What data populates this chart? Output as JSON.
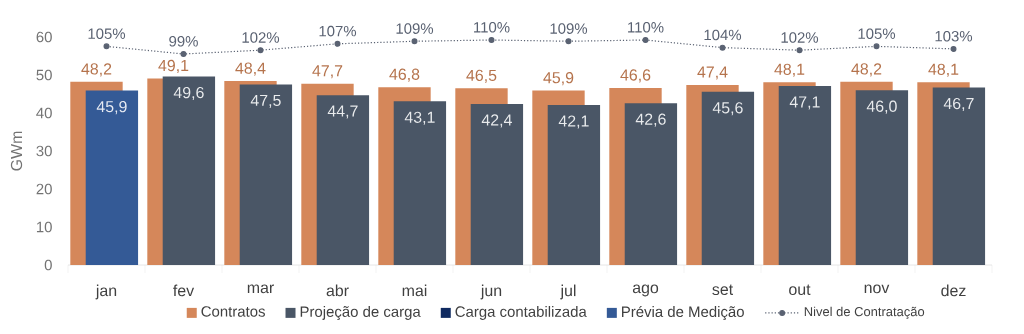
{
  "chart_data": {
    "type": "bar",
    "ylabel": "GWm",
    "categories": [
      "jan",
      "fev",
      "mar",
      "abr",
      "mai",
      "jun",
      "jul",
      "ago",
      "set",
      "out",
      "nov",
      "dez"
    ],
    "series": [
      {
        "name": "Contratos",
        "color": "#d5875a",
        "values": [
          48.2,
          49.1,
          48.4,
          47.7,
          46.8,
          46.5,
          45.9,
          46.6,
          47.4,
          48.1,
          48.2,
          48.1
        ],
        "value_labels": [
          "48,2",
          "49,1",
          "48,4",
          "47,7",
          "46,8",
          "46,5",
          "45,9",
          "46,6",
          "47,4",
          "48,1",
          "48,2",
          "48,1"
        ]
      },
      {
        "name": "Projeção de carga",
        "color": "#4a5666",
        "values": [
          null,
          49.6,
          47.5,
          44.7,
          43.1,
          42.4,
          42.1,
          42.6,
          45.6,
          47.1,
          46.0,
          46.7
        ],
        "value_labels": [
          null,
          "49,6",
          "47,5",
          "44,7",
          "43,1",
          "42,4",
          "42,1",
          "42,6",
          "45,6",
          "47,1",
          "46,0",
          "46,7"
        ]
      },
      {
        "name": "Carga contabilizada",
        "color": "#0f2a60",
        "values": [
          null,
          null,
          null,
          null,
          null,
          null,
          null,
          null,
          null,
          null,
          null,
          null
        ]
      },
      {
        "name": "Prévia de Medição",
        "color": "#345a96",
        "values": [
          45.9,
          null,
          null,
          null,
          null,
          null,
          null,
          null,
          null,
          null,
          null,
          null
        ],
        "value_labels": [
          "45,9",
          null,
          null,
          null,
          null,
          null,
          null,
          null,
          null,
          null,
          null,
          null
        ]
      },
      {
        "name": "Nivel de Contratação",
        "type": "line",
        "axis": "y2",
        "color": "#5a6272",
        "marker": "circle",
        "line_style": "dotted",
        "values": [
          105,
          99,
          102,
          107,
          109,
          110,
          109,
          110,
          104,
          102,
          105,
          103
        ],
        "value_labels": [
          "105%",
          "99%",
          "102%",
          "107%",
          "109%",
          "110%",
          "109%",
          "110%",
          "104%",
          "102%",
          "105%",
          "103%"
        ]
      }
    ],
    "ylim": [
      0,
      60
    ],
    "yticks": [
      0,
      10,
      20,
      30,
      40,
      50,
      60
    ],
    "legend": "bottom"
  }
}
